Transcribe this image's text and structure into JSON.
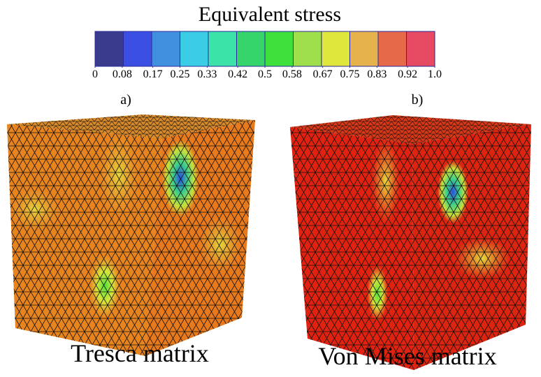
{
  "colorbar": {
    "title": "Equivalent stress",
    "ticks": [
      0,
      0.08,
      0.17,
      0.25,
      0.33,
      0.42,
      0.5,
      0.58,
      0.67,
      0.75,
      0.83,
      0.92,
      {
        "value": 1,
        "label": "1.0"
      }
    ],
    "colors": [
      "#3b3b8e",
      "#3b4fe2",
      "#4190e0",
      "#3bcde6",
      "#3be3a8",
      "#36d56b",
      "#3fe03b",
      "#9edf4b",
      "#dfe63c",
      "#e6b24b",
      "#e6694a",
      "#e64a62"
    ]
  },
  "panels": [
    {
      "label": "a)",
      "caption": "Tresca matrix"
    },
    {
      "label": "b)",
      "caption": "Von Mises matrix"
    }
  ]
}
